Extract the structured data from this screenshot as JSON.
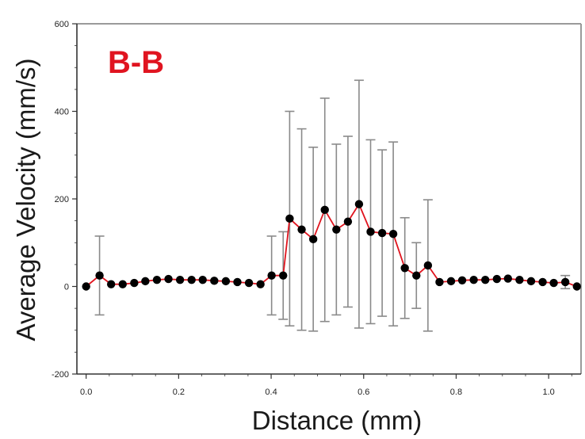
{
  "colors": {
    "line": "#e0141e",
    "marker": "#000000",
    "error_bar": "#8a8a8a",
    "panel_label": "#e01420",
    "axis": "#333333",
    "frame": "#9a9a9a"
  },
  "chart_data": {
    "type": "line",
    "title": "",
    "panel_label": "B-B",
    "xlabel": "Distance (mm)",
    "ylabel": "Average Velocity (mm/s)",
    "xlim": [
      -0.02,
      1.07
    ],
    "ylim": [
      -200,
      600
    ],
    "x_ticks": [
      0.0,
      0.2,
      0.4,
      0.6,
      0.8,
      1.0
    ],
    "x_tick_labels": [
      "0.0",
      "0.2",
      "0.4",
      "0.6",
      "0.8",
      "1.0"
    ],
    "y_ticks": [
      -200,
      0,
      200,
      400,
      600
    ],
    "y_tick_labels": [
      "-200",
      "0",
      "200",
      "400",
      "600"
    ],
    "grid": false,
    "legend": "none",
    "series": [
      {
        "x": [
          0.0,
          0.029,
          0.054,
          0.079,
          0.104,
          0.128,
          0.153,
          0.178,
          0.203,
          0.228,
          0.252,
          0.277,
          0.302,
          0.327,
          0.352,
          0.377,
          0.401,
          0.426,
          0.44,
          0.466,
          0.491,
          0.516,
          0.541,
          0.566,
          0.59,
          0.615,
          0.64,
          0.664,
          0.689,
          0.714,
          0.739,
          0.764,
          0.789,
          0.813,
          0.838,
          0.863,
          0.888,
          0.912,
          0.937,
          0.962,
          0.987,
          1.011,
          1.036,
          1.061
        ],
        "values": [
          0,
          25,
          5,
          5,
          8,
          12,
          15,
          17,
          15,
          15,
          15,
          13,
          12,
          10,
          8,
          5,
          25,
          25,
          155,
          130,
          108,
          175,
          130,
          148,
          188,
          125,
          122,
          120,
          42,
          25,
          48,
          10,
          12,
          14,
          15,
          15,
          17,
          18,
          15,
          12,
          10,
          8,
          10,
          0
        ],
        "error": [
          0,
          90,
          0,
          0,
          0,
          0,
          0,
          0,
          0,
          0,
          0,
          0,
          0,
          0,
          0,
          0,
          90,
          100,
          245,
          230,
          210,
          255,
          195,
          195,
          283,
          210,
          190,
          210,
          115,
          75,
          150,
          0,
          0,
          0,
          0,
          0,
          0,
          0,
          0,
          0,
          0,
          0,
          15,
          0
        ]
      }
    ]
  }
}
